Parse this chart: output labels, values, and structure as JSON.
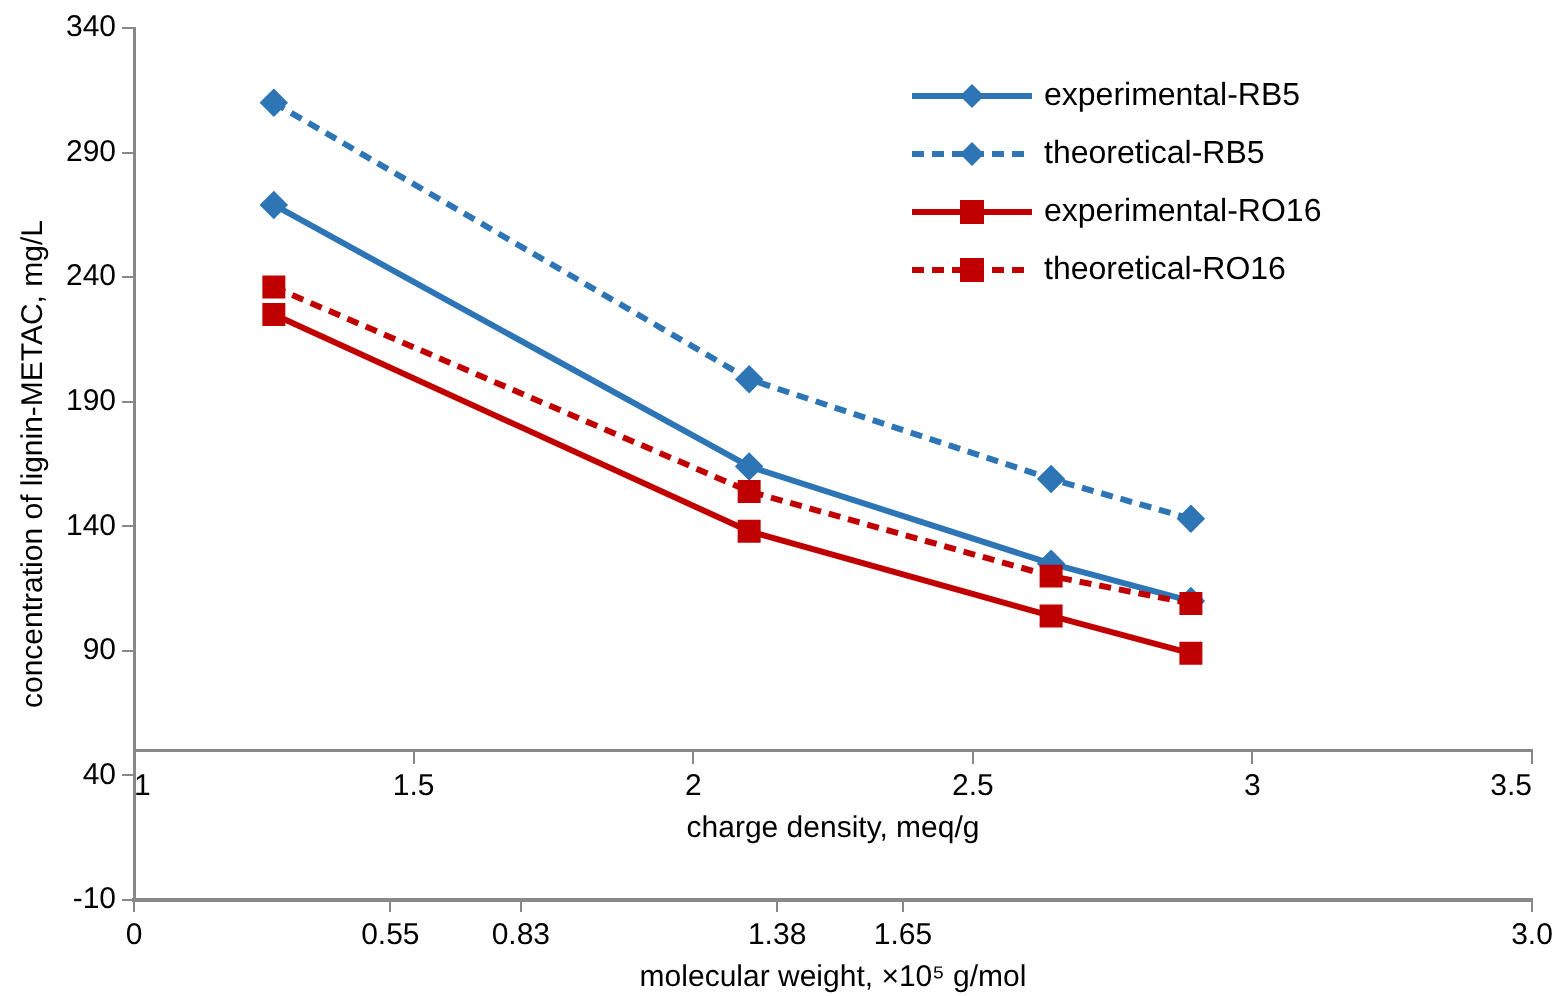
{
  "chart_data": {
    "type": "line",
    "xlabel": "charge density, meq/g",
    "x2label": "molecular weight, ×10⁵ g/mol",
    "ylabel": "concentration of lignin-METAC, mg/L",
    "x": [
      1.25,
      2.1,
      2.64,
      2.89
    ],
    "series": [
      {
        "name": "experimental-RB5",
        "color": "#2e75b6",
        "values": [
          269,
          164,
          125,
          110
        ],
        "marker": "diamond",
        "line_style": "solid"
      },
      {
        "name": "theoretical-RB5",
        "color": "#2e75b6",
        "values": [
          310,
          199,
          159,
          143
        ],
        "marker": "diamond",
        "line_style": "dashed"
      },
      {
        "name": "experimental-RO16",
        "color": "#c00000",
        "values": [
          225,
          138,
          104,
          89
        ],
        "marker": "square",
        "line_style": "solid"
      },
      {
        "name": "theoretical-RO16",
        "color": "#c00000",
        "values": [
          236,
          154,
          120,
          109
        ],
        "marker": "square",
        "line_style": "dashed"
      }
    ],
    "xlim": [
      1,
      3.5
    ],
    "xticks": [
      1,
      1.5,
      2,
      2.5,
      3,
      3.5
    ],
    "x2lim": [
      0,
      3.0
    ],
    "x2ticks": [
      0,
      0.55,
      0.83,
      1.38,
      1.65,
      {
        "value": 3.0,
        "label": "3.0"
      }
    ],
    "ylim": [
      -10,
      340
    ],
    "yticks": [
      -10,
      40,
      90,
      140,
      190,
      240,
      290,
      340
    ],
    "grid": false,
    "legend": "top right"
  }
}
